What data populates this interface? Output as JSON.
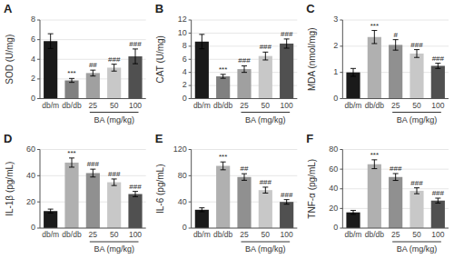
{
  "chart_data": [
    {
      "type": "bar",
      "title": "A",
      "ylabel": "SOD (U/mg)",
      "xlabel": "BA (mg/kg)",
      "categories": [
        "db/m",
        "db/db",
        "25",
        "50",
        "100"
      ],
      "values": [
        5.85,
        1.85,
        2.6,
        3.15,
        4.3
      ],
      "errors": [
        0.75,
        0.2,
        0.3,
        0.35,
        0.75
      ],
      "colors": [
        "#1a1a1a",
        "#808080",
        "#a0a0a0",
        "#c8c8c8",
        "#505050"
      ],
      "annotations": [
        null,
        "***",
        "##",
        "###",
        "###"
      ],
      "ylim": [
        0,
        8
      ],
      "yticks": [
        0,
        2,
        4,
        6,
        8
      ]
    },
    {
      "type": "bar",
      "title": "B",
      "ylabel": "CAT (U/mg)",
      "xlabel": "BA (mg/kg)",
      "categories": [
        "db/m",
        "db/db",
        "25",
        "50",
        "100"
      ],
      "values": [
        8.7,
        3.4,
        4.5,
        6.5,
        8.4
      ],
      "errors": [
        1.1,
        0.3,
        0.5,
        0.6,
        0.7
      ],
      "colors": [
        "#1a1a1a",
        "#808080",
        "#a0a0a0",
        "#c8c8c8",
        "#505050"
      ],
      "annotations": [
        null,
        "***",
        "###",
        "###",
        "###"
      ],
      "ylim": [
        0,
        12
      ],
      "yticks": [
        0,
        2,
        4,
        6,
        8,
        10,
        12
      ]
    },
    {
      "type": "bar",
      "title": "C",
      "ylabel": "MDA (nmol/mg)",
      "xlabel": "BA (mg/kg)",
      "categories": [
        "db/m",
        "db/db",
        "25",
        "50",
        "100"
      ],
      "values": [
        1.0,
        2.35,
        2.05,
        1.72,
        1.25
      ],
      "errors": [
        0.15,
        0.25,
        0.2,
        0.15,
        0.1
      ],
      "colors": [
        "#1a1a1a",
        "#b0b0b0",
        "#909090",
        "#c8c8c8",
        "#505050"
      ],
      "annotations": [
        null,
        "***",
        "#",
        "###",
        "###"
      ],
      "ylim": [
        0,
        3
      ],
      "yticks": [
        0,
        1,
        2,
        3
      ]
    },
    {
      "type": "bar",
      "title": "D",
      "ylabel": "IL-1β (pg/mL)",
      "xlabel": "BA (mg/kg)",
      "categories": [
        "db/m",
        "db/db",
        "25",
        "50",
        "100"
      ],
      "values": [
        13.0,
        50.0,
        42.0,
        35.0,
        26.0
      ],
      "errors": [
        1.5,
        3.5,
        3.0,
        2.5,
        2.0
      ],
      "colors": [
        "#1a1a1a",
        "#b0b0b0",
        "#909090",
        "#c8c8c8",
        "#505050"
      ],
      "annotations": [
        null,
        "***",
        "###",
        "###",
        "###"
      ],
      "ylim": [
        0,
        60
      ],
      "yticks": [
        0,
        20,
        40,
        60
      ]
    },
    {
      "type": "bar",
      "title": "E",
      "ylabel": "IL-6 (pg/mL)",
      "xlabel": "BA (mg/kg)",
      "categories": [
        "db/m",
        "db/db",
        "25",
        "50",
        "100"
      ],
      "values": [
        28.0,
        95.0,
        78.0,
        58.0,
        40.0
      ],
      "errors": [
        3.0,
        6.0,
        5.0,
        4.5,
        3.5
      ],
      "colors": [
        "#1a1a1a",
        "#b0b0b0",
        "#909090",
        "#c8c8c8",
        "#505050"
      ],
      "annotations": [
        null,
        "***",
        "##",
        "###",
        "###"
      ],
      "ylim": [
        0,
        120
      ],
      "yticks": [
        0,
        40,
        80,
        120
      ]
    },
    {
      "type": "bar",
      "title": "F",
      "ylabel": "TNF-α (pg/mL)",
      "xlabel": "BA (mg/kg)",
      "categories": [
        "db/m",
        "db/db",
        "25",
        "50",
        "100"
      ],
      "values": [
        16.0,
        65.0,
        52.0,
        38.0,
        28.0
      ],
      "errors": [
        2.0,
        4.5,
        3.5,
        3.0,
        2.5
      ],
      "colors": [
        "#1a1a1a",
        "#b0b0b0",
        "#909090",
        "#c8c8c8",
        "#505050"
      ],
      "annotations": [
        null,
        "***",
        "###",
        "###",
        "###"
      ],
      "ylim": [
        0,
        80
      ],
      "yticks": [
        0,
        20,
        40,
        60,
        80
      ]
    }
  ]
}
